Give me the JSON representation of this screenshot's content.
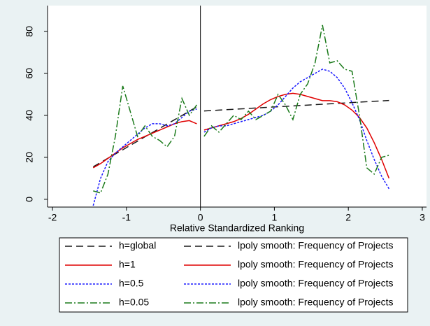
{
  "chart_data": {
    "type": "line",
    "x_label": "Relative Standardized Ranking",
    "xlim": [
      -2.067,
      3.057
    ],
    "ylim": [
      -3.7,
      92.3
    ],
    "xticks": [
      -2,
      -1,
      0,
      1,
      2,
      3
    ],
    "yticks": [
      0,
      20,
      40,
      60,
      80
    ],
    "xline": 0,
    "grid": false,
    "series": [
      {
        "name": "h=global",
        "color": "#1a1a1a",
        "dash": "10,6",
        "x": [
          -1.45,
          -1.35,
          -1.25,
          -1.15,
          -1.05,
          -0.95,
          -0.85,
          -0.75,
          -0.65,
          -0.55,
          -0.45,
          -0.35,
          -0.25,
          -0.15,
          -0.05
        ],
        "values": [
          15.5,
          17.5,
          19.6,
          21.6,
          23.6,
          25.7,
          27.7,
          29.8,
          31.8,
          33.8,
          35.9,
          37.9,
          39.9,
          42,
          44
        ]
      },
      {
        "name": "lpoly smooth: Frequency of Projects",
        "color": "#1a1a1a",
        "dash": "10,6",
        "x": [
          0.05,
          0.15,
          0.25,
          0.35,
          0.45,
          0.55,
          0.65,
          0.75,
          0.85,
          0.95,
          1.05,
          1.15,
          1.25,
          1.35,
          1.45,
          1.55,
          1.65,
          1.75,
          1.85,
          1.95,
          2.05,
          2.15,
          2.25,
          2.35,
          2.45,
          2.55
        ],
        "values": [
          42.1,
          42.3,
          42.5,
          42.7,
          42.9,
          43.1,
          43.3,
          43.5,
          43.7,
          43.9,
          44.1,
          44.3,
          44.5,
          44.7,
          44.9,
          45.1,
          45.3,
          45.5,
          45.7,
          45.9,
          46.1,
          46.3,
          46.5,
          46.7,
          46.9,
          47.1
        ]
      },
      {
        "name": "h=1",
        "color": "#e00000",
        "dash": "",
        "x": [
          -1.45,
          -1.35,
          -1.25,
          -1.15,
          -1.05,
          -0.95,
          -0.85,
          -0.75,
          -0.65,
          -0.55,
          -0.45,
          -0.35,
          -0.25,
          -0.15,
          -0.05
        ],
        "values": [
          15,
          17,
          19.5,
          22,
          24.5,
          26.5,
          28.5,
          30,
          31.5,
          33,
          34.5,
          36,
          37,
          37.5,
          36
        ]
      },
      {
        "name": "lpoly smooth: Frequency of Projects",
        "color": "#e00000",
        "dash": "",
        "x": [
          0.05,
          0.15,
          0.25,
          0.35,
          0.45,
          0.55,
          0.65,
          0.75,
          0.85,
          0.95,
          1.05,
          1.15,
          1.25,
          1.35,
          1.45,
          1.55,
          1.65,
          1.75,
          1.85,
          1.95,
          2.05,
          2.15,
          2.25,
          2.35,
          2.45,
          2.55
        ],
        "values": [
          33,
          34,
          35,
          36,
          37,
          38.5,
          40.5,
          43,
          45.5,
          47.5,
          49,
          50,
          50.5,
          50,
          49,
          48,
          47,
          47,
          46.5,
          45,
          42.5,
          39,
          34,
          27,
          19,
          10
        ]
      },
      {
        "name": "h=0.5",
        "color": "#1a1aff",
        "dash": "3,2",
        "x": [
          -1.45,
          -1.35,
          -1.25,
          -1.15,
          -1.05,
          -0.95,
          -0.85,
          -0.75,
          -0.65,
          -0.55,
          -0.45,
          -0.35,
          -0.25,
          -0.15,
          -0.05
        ],
        "values": [
          -3,
          10,
          18,
          22,
          25,
          28,
          31,
          34,
          36,
          36,
          35,
          36,
          39,
          42,
          43
        ]
      },
      {
        "name": "lpoly smooth: Frequency of Projects",
        "color": "#1a1aff",
        "dash": "3,2",
        "x": [
          0.05,
          0.15,
          0.25,
          0.35,
          0.45,
          0.55,
          0.65,
          0.75,
          0.85,
          0.95,
          1.05,
          1.15,
          1.25,
          1.35,
          1.45,
          1.55,
          1.65,
          1.75,
          1.85,
          1.95,
          2.05,
          2.15,
          2.25,
          2.35,
          2.45,
          2.55
        ],
        "values": [
          32,
          34,
          35,
          35,
          36,
          37,
          38,
          39,
          40,
          42,
          45,
          49,
          53,
          56,
          58,
          60,
          62,
          61,
          58,
          53,
          46,
          38,
          28,
          19,
          11,
          5
        ]
      },
      {
        "name": "h=0.05",
        "color": "#1a7a1a",
        "dash": "10,3,2,3",
        "x": [
          -1.45,
          -1.35,
          -1.25,
          -1.15,
          -1.05,
          -0.95,
          -0.85,
          -0.75,
          -0.65,
          -0.55,
          -0.45,
          -0.35,
          -0.25,
          -0.15,
          -0.05
        ],
        "values": [
          4,
          3,
          12,
          30,
          54,
          42,
          30,
          35,
          30,
          28,
          25,
          30,
          48,
          40,
          45
        ]
      },
      {
        "name": "lpoly smooth: Frequency of Projects",
        "color": "#1a7a1a",
        "dash": "10,3,2,3",
        "x": [
          0.05,
          0.15,
          0.25,
          0.35,
          0.45,
          0.55,
          0.65,
          0.75,
          0.85,
          0.95,
          1.05,
          1.15,
          1.25,
          1.35,
          1.45,
          1.55,
          1.65,
          1.75,
          1.85,
          1.95,
          2.05,
          2.15,
          2.25,
          2.35,
          2.45,
          2.55
        ],
        "values": [
          30,
          35,
          32,
          36,
          40,
          38,
          42,
          38,
          40,
          42,
          50,
          45,
          38,
          50,
          55,
          65,
          83,
          65,
          66,
          62,
          61,
          40,
          15,
          12,
          20,
          21
        ]
      }
    ]
  }
}
